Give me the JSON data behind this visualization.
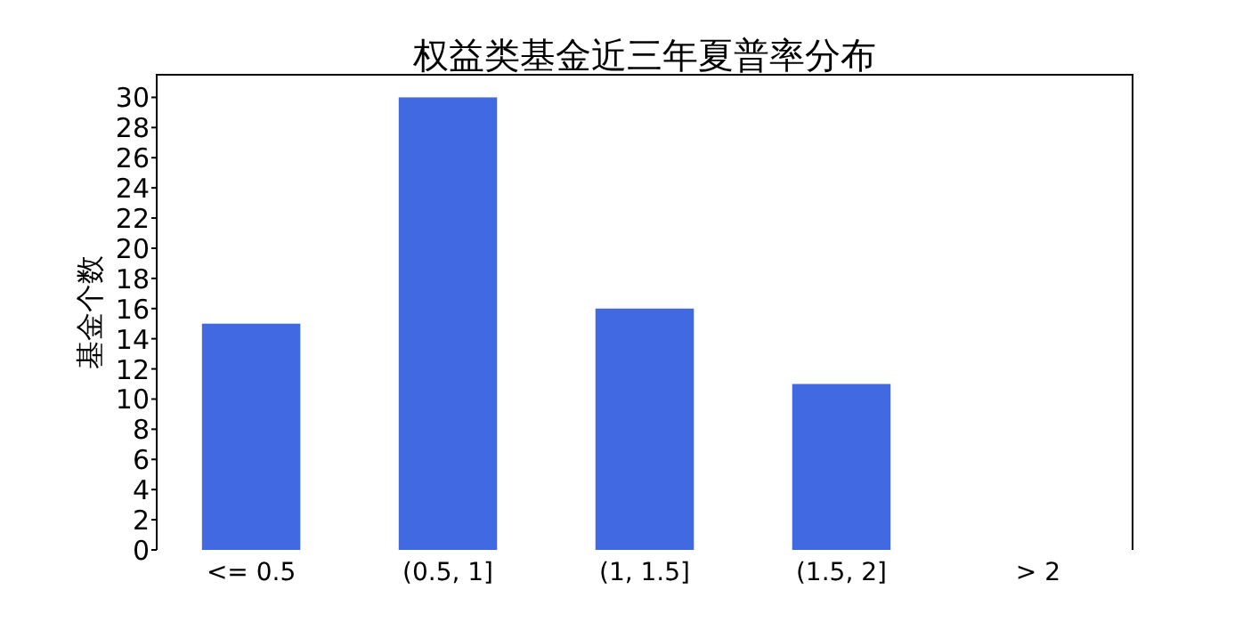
{
  "chart_data": {
    "type": "bar",
    "title": "权益类基金近三年夏普率分布",
    "ylabel": "基金个数",
    "categories": [
      "<= 0.5",
      "(0.5, 1]",
      "(1, 1.5]",
      "(1.5, 2]",
      "> 2"
    ],
    "values": [
      15,
      30,
      16,
      11,
      0
    ],
    "color": "#4169e1",
    "ylim": [
      0,
      31.5
    ],
    "yticks": [
      0,
      2,
      4,
      6,
      8,
      10,
      12,
      14,
      16,
      18,
      20,
      22,
      24,
      26,
      28,
      30
    ]
  }
}
